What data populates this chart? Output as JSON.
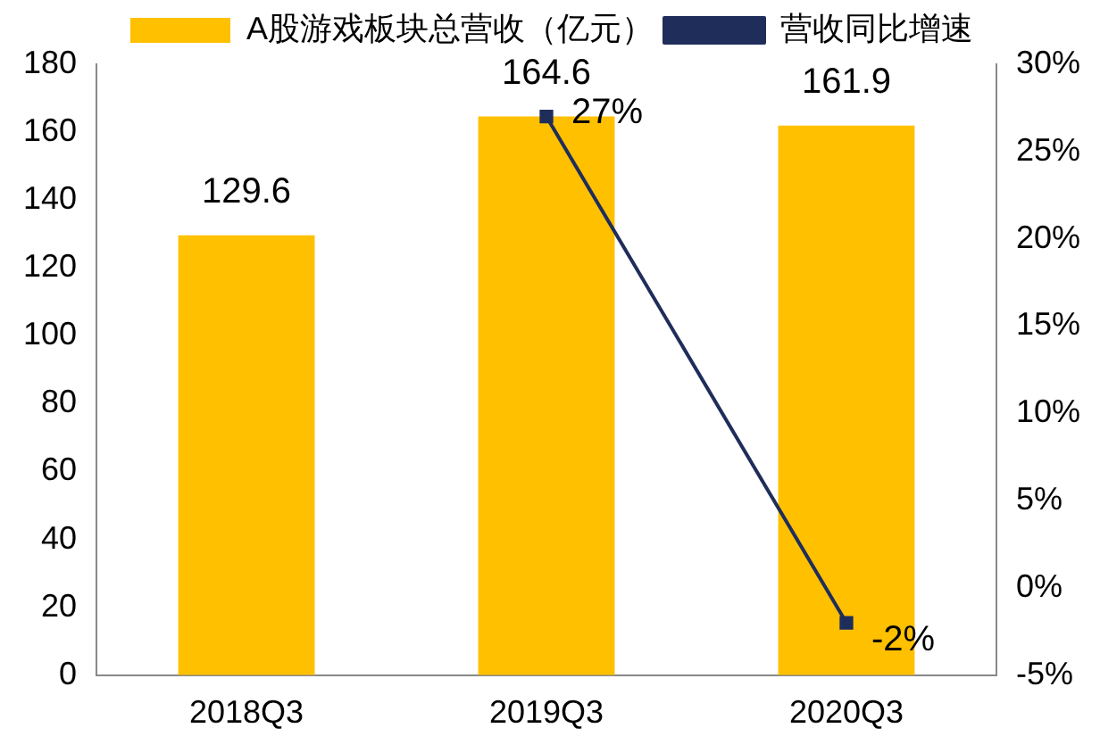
{
  "chart_data": {
    "type": "bar",
    "categories": [
      "2018Q3",
      "2019Q3",
      "2020Q3"
    ],
    "series": [
      {
        "name": "A股游戏板块总营收（亿元）",
        "color": "#ffc000",
        "values": [
          129.6,
          164.6,
          161.9
        ],
        "value_labels": [
          "129.6",
          "164.6",
          "161.9"
        ]
      },
      {
        "name": "营收同比增速",
        "type": "line",
        "axis": "y2",
        "color": "#1f2d5a",
        "values": [
          null,
          27,
          -2
        ],
        "value_labels": [
          null,
          "27%",
          "-2%"
        ]
      }
    ],
    "ylim": [
      0,
      180
    ],
    "yticks": [
      0,
      20,
      40,
      60,
      80,
      100,
      120,
      140,
      160,
      180
    ],
    "y2lim": [
      -5,
      30
    ],
    "y2ticks": [
      {
        "value": -5,
        "label": "-5%"
      },
      {
        "value": 0,
        "label": "0%"
      },
      {
        "value": 5,
        "label": "5%"
      },
      {
        "value": 10,
        "label": "10%"
      },
      {
        "value": 15,
        "label": "15%"
      },
      {
        "value": 20,
        "label": "20%"
      },
      {
        "value": 25,
        "label": "25%"
      },
      {
        "value": 30,
        "label": "30%"
      }
    ],
    "grid": false,
    "legend": "top",
    "marker": "square",
    "line_style": "solid"
  }
}
